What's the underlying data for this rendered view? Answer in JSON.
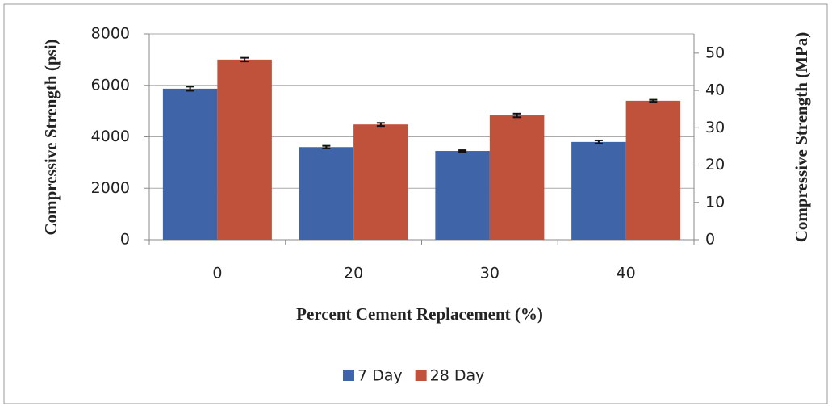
{
  "chart_data": {
    "type": "bar",
    "x_label": "Percent Cement Replacement (%)",
    "y_label": "Compressive Strength (psi)",
    "y2_label": "Compressive Strength (MPa)",
    "categories": [
      "0",
      "20",
      "30",
      "40"
    ],
    "series": [
      {
        "name": "7 Day",
        "color": "#3f65a8",
        "values": [
          5870,
          3600,
          3450,
          3800
        ],
        "errors": [
          80,
          50,
          30,
          60
        ]
      },
      {
        "name": "28 Day",
        "color": "#c0513a",
        "values": [
          7000,
          4480,
          4830,
          5400
        ],
        "errors": [
          70,
          60,
          70,
          40
        ]
      }
    ],
    "ylim": [
      0,
      8000
    ],
    "yticks": [
      0,
      2000,
      4000,
      6000,
      8000
    ],
    "y2lim": [
      0,
      55.16
    ],
    "y2ticks": [
      0,
      10,
      20,
      30,
      40,
      50
    ],
    "grid": true,
    "legend": "bottom"
  }
}
